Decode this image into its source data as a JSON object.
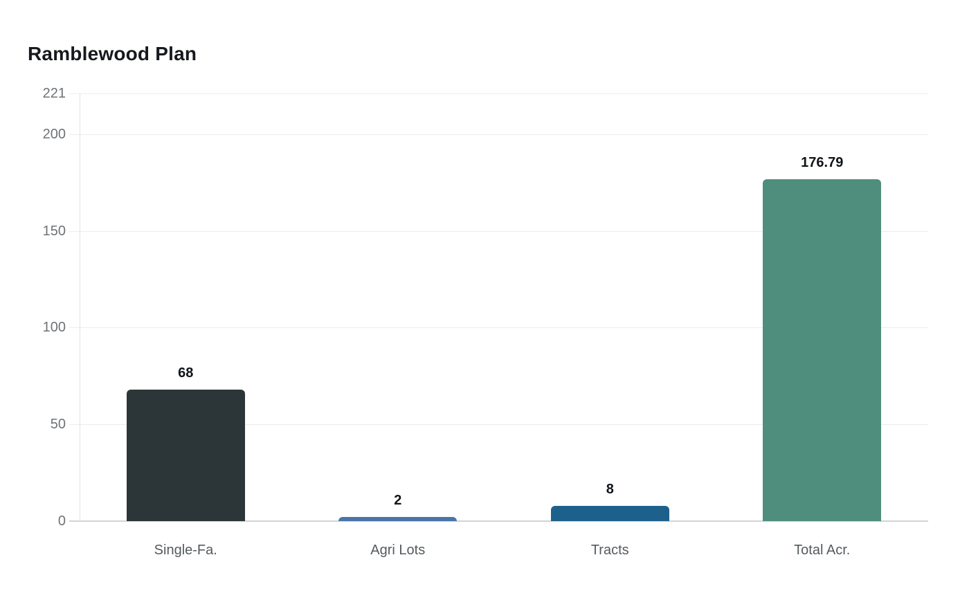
{
  "title": "Ramblewood Plan",
  "chart_data": {
    "type": "bar",
    "title": "Ramblewood Plan",
    "categories": [
      "Single-Fa.",
      "Agri Lots",
      "Tracts",
      "Total Acr."
    ],
    "values": [
      68,
      2,
      8,
      176.79
    ],
    "value_labels": [
      "68",
      "2",
      "8",
      "176.79"
    ],
    "bar_colors": [
      "#2c3537",
      "#4b75a9",
      "#1d608c",
      "#4f8e7c"
    ],
    "xlabel": "",
    "ylabel": "",
    "ylim": [
      0,
      221
    ],
    "yticks": [
      0,
      50,
      100,
      150,
      200,
      221
    ],
    "grid": true,
    "legend": false,
    "colors": {
      "background": "#ffffff",
      "title_text": "#16191d",
      "tick_text": "#6e7377",
      "category_text": "#545a5e",
      "value_text": "#101418",
      "gridline": "#ececec",
      "zero_line": "#d2d4d5",
      "axis_line": "#e0e1e2"
    }
  }
}
